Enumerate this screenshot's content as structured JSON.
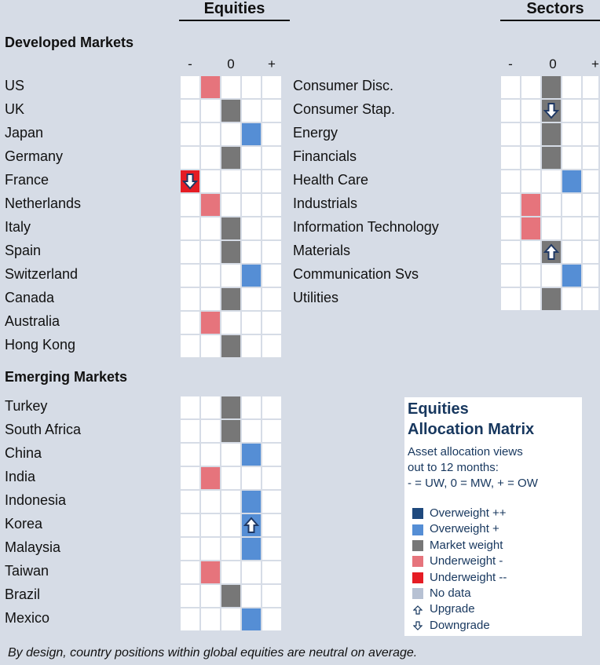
{
  "headers": {
    "equities": "Equities",
    "sectors": "Sectors"
  },
  "sections": {
    "developed": "Developed Markets",
    "emerging": "Emerging Markets"
  },
  "axis": [
    "-",
    "0",
    "+"
  ],
  "colors": {
    "ow2": "#1f497d",
    "ow": "#558ed5",
    "mw": "#777777",
    "uw": "#e6747c",
    "uw2": "#e51c24",
    "nd": "#b7c1d3",
    "empty": "#ffffff"
  },
  "chart_data": {
    "type": "heatmap",
    "scale": [
      "--",
      "-",
      "0",
      "+",
      "++"
    ],
    "developed": [
      {
        "name": "US",
        "position": -1,
        "change": ""
      },
      {
        "name": "UK",
        "position": 0,
        "change": ""
      },
      {
        "name": "Japan",
        "position": 1,
        "change": ""
      },
      {
        "name": "Germany",
        "position": 0,
        "change": ""
      },
      {
        "name": "France",
        "position": -2,
        "change": "downgrade"
      },
      {
        "name": "Netherlands",
        "position": -1,
        "change": ""
      },
      {
        "name": "Italy",
        "position": 0,
        "change": ""
      },
      {
        "name": "Spain",
        "position": 0,
        "change": ""
      },
      {
        "name": "Switzerland",
        "position": 1,
        "change": ""
      },
      {
        "name": "Canada",
        "position": 0,
        "change": ""
      },
      {
        "name": "Australia",
        "position": -1,
        "change": ""
      },
      {
        "name": "Hong Kong",
        "position": 0,
        "change": ""
      }
    ],
    "emerging": [
      {
        "name": "Turkey",
        "position": 0,
        "change": ""
      },
      {
        "name": "South Africa",
        "position": 0,
        "change": ""
      },
      {
        "name": "China",
        "position": 1,
        "change": ""
      },
      {
        "name": "India",
        "position": -1,
        "change": ""
      },
      {
        "name": "Indonesia",
        "position": 1,
        "change": ""
      },
      {
        "name": "Korea",
        "position": 1,
        "change": "upgrade"
      },
      {
        "name": "Malaysia",
        "position": 1,
        "change": ""
      },
      {
        "name": "Taiwan",
        "position": -1,
        "change": ""
      },
      {
        "name": "Brazil",
        "position": 0,
        "change": ""
      },
      {
        "name": "Mexico",
        "position": 1,
        "change": ""
      }
    ],
    "sectors": [
      {
        "name": "Consumer Disc.",
        "position": 0,
        "change": ""
      },
      {
        "name": "Consumer Stap.",
        "position": 0,
        "change": "downgrade"
      },
      {
        "name": "Energy",
        "position": 0,
        "change": ""
      },
      {
        "name": "Financials",
        "position": 0,
        "change": ""
      },
      {
        "name": "Health Care",
        "position": 1,
        "change": ""
      },
      {
        "name": "Industrials",
        "position": -1,
        "change": ""
      },
      {
        "name": "Information Technology",
        "position": -1,
        "change": ""
      },
      {
        "name": "Materials",
        "position": 0,
        "change": "upgrade"
      },
      {
        "name": "Communication Svs",
        "position": 1,
        "change": ""
      },
      {
        "name": "Utilities",
        "position": 0,
        "change": ""
      }
    ]
  },
  "legend": {
    "title1": "Equities",
    "title2": "Allocation Matrix",
    "desc1": "Asset allocation views",
    "desc2": "out to 12 months:",
    "desc3": "- = UW, 0 = MW, + = OW",
    "items": [
      {
        "label": "Overweight ++",
        "color": "#1f497d"
      },
      {
        "label": "Overweight +",
        "color": "#558ed5"
      },
      {
        "label": "Market weight",
        "color": "#777777"
      },
      {
        "label": "Underweight -",
        "color": "#e6747c"
      },
      {
        "label": "Underweight --",
        "color": "#e51c24"
      },
      {
        "label": "No data",
        "color": "#b7c1d3"
      }
    ],
    "upgrade": "Upgrade",
    "downgrade": "Downgrade"
  },
  "footnote": "By design, country positions within global equities are neutral on average."
}
